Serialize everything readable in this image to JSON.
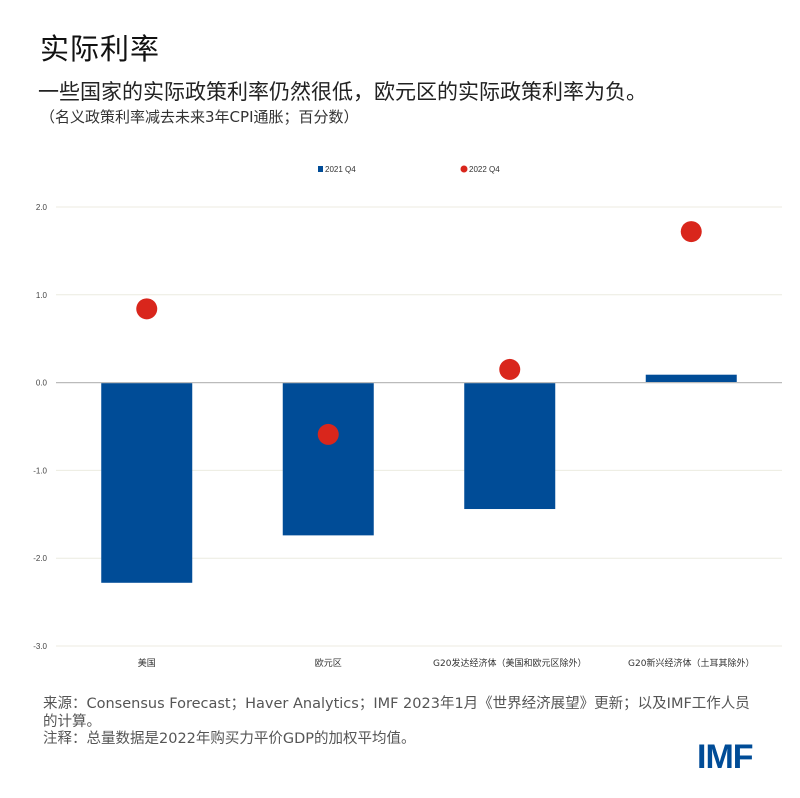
{
  "header": {
    "title": "实际利率",
    "subtitle": "一些国家的实际政策利率仍然很低，欧元区的实际政策利率为负。",
    "note": "（名义政策利率减去未来3年CPI通胀；百分数）"
  },
  "chart_data": {
    "type": "bar",
    "categories": [
      "美国",
      "欧元区",
      "G20发达经济体（美国和欧元区除外）",
      "G20新兴经济体（土耳其除外）"
    ],
    "series": [
      {
        "name": "2021 Q4",
        "kind": "bar",
        "color": "#004c97",
        "values": [
          -2.28,
          -1.74,
          -1.44,
          0.09
        ]
      },
      {
        "name": "2022 Q4",
        "kind": "dot",
        "color": "#d9261c",
        "values": [
          0.84,
          -0.59,
          0.15,
          1.72
        ]
      }
    ],
    "ylim": [
      -3.0,
      2.0
    ],
    "yticks": [
      "2.0",
      "1.0",
      "0.0",
      "-1.0",
      "-2.0",
      "-3.0"
    ],
    "ytick_values": [
      2,
      1,
      0,
      -1,
      -2,
      -3
    ],
    "grid": true,
    "legend": "top-center",
    "xlabel": "",
    "ylabel": ""
  },
  "footer": {
    "source": "来源：Consensus Forecast；Haver Analytics；IMF 2023年1月《世界经济展望》更新；以及IMF工作人员的计算。",
    "note": "注释：总量数据是2022年购买力平价GDP的加权平均值。"
  },
  "logo": "IMF"
}
